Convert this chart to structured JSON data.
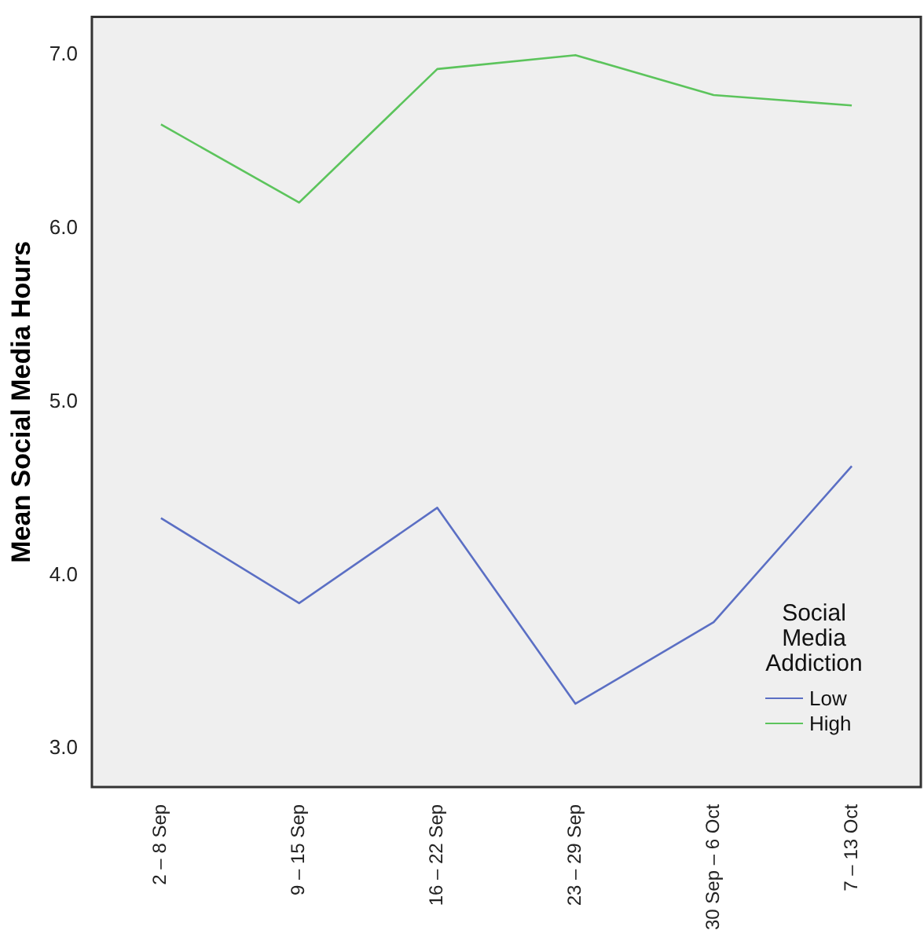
{
  "chart_data": {
    "type": "line",
    "ylabel": "Mean Social Media Hours",
    "legend_title": "Social Media Addiction",
    "categories": [
      "2 – 8 Sep",
      "9 – 15 Sep",
      "16 – 22 Sep",
      "23 – 29 Sep",
      "30 Sep – 6 Oct",
      "7 – 13 Oct"
    ],
    "series": [
      {
        "name": "Low",
        "color": "#5b6fc4",
        "values": [
          4.33,
          3.84,
          4.39,
          3.26,
          3.73,
          4.63
        ]
      },
      {
        "name": "High",
        "color": "#5cc45c",
        "values": [
          6.6,
          6.15,
          6.92,
          7.0,
          6.77,
          6.71
        ]
      }
    ],
    "ylim": [
      2.78,
      7.22
    ],
    "yticks": [
      {
        "value": 3,
        "label": "3.0"
      },
      {
        "value": 4,
        "label": "4.0"
      },
      {
        "value": 5,
        "label": "5.0"
      },
      {
        "value": 6,
        "label": "6.0"
      },
      {
        "value": 7,
        "label": "7.0"
      }
    ],
    "grid": false,
    "legend": "bottom right",
    "marker": "none",
    "line_style": "solid"
  }
}
